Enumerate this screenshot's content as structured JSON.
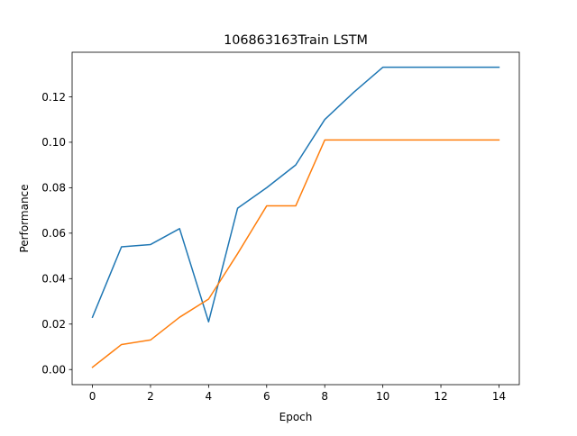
{
  "chart_data": {
    "type": "line",
    "title": "106863163Train LSTM",
    "xlabel": "Epoch",
    "ylabel": "Performance",
    "xlim": [
      -0.7,
      14.7
    ],
    "ylim": [
      -0.00665,
      0.1396
    ],
    "x_ticks": [
      0,
      2,
      4,
      6,
      8,
      10,
      12,
      14
    ],
    "x_tick_labels": [
      "0",
      "2",
      "4",
      "6",
      "8",
      "10",
      "12",
      "14"
    ],
    "y_ticks": [
      0.0,
      0.02,
      0.04,
      0.06,
      0.08,
      0.1,
      0.12
    ],
    "y_tick_labels": [
      "0.00",
      "0.02",
      "0.04",
      "0.06",
      "0.08",
      "0.10",
      "0.12"
    ],
    "grid": false,
    "x": [
      0,
      1,
      2,
      3,
      4,
      5,
      6,
      7,
      8,
      9,
      10,
      11,
      12,
      13,
      14
    ],
    "series": [
      {
        "color": "#1f77b4",
        "values": [
          0.023,
          0.054,
          0.055,
          0.062,
          0.021,
          0.071,
          0.08,
          0.09,
          0.11,
          0.122,
          0.133,
          0.133,
          0.133,
          0.133,
          0.133
        ]
      },
      {
        "color": "#ff7f0e",
        "values": [
          0.001,
          0.011,
          0.013,
          0.023,
          0.031,
          0.051,
          0.072,
          0.072,
          0.101,
          0.101,
          0.101,
          0.101,
          0.101,
          0.101,
          0.101
        ]
      }
    ]
  }
}
